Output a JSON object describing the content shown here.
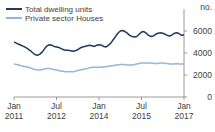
{
  "chart_data": {
    "type": "line",
    "y_label": "no.",
    "categories": [
      "Jan 2011",
      null,
      null,
      null,
      null,
      null,
      null,
      null,
      null,
      null,
      null,
      null,
      null,
      null,
      null,
      null,
      null,
      null,
      "Jul 2012",
      null,
      null,
      null,
      null,
      null,
      null,
      null,
      null,
      null,
      null,
      null,
      null,
      null,
      null,
      null,
      null,
      null,
      "Jan 2014",
      null,
      null,
      null,
      null,
      null,
      null,
      null,
      null,
      null,
      null,
      null,
      null,
      null,
      null,
      null,
      null,
      null,
      "Jul 2015",
      null,
      null,
      null,
      null,
      null,
      null,
      null,
      null,
      null,
      null,
      null,
      null,
      null,
      null,
      null,
      null,
      null,
      "Jan 2017"
    ],
    "series": [
      {
        "name": "Total dwelling units",
        "color": "#1f3a63",
        "values": [
          5000,
          4900,
          4800,
          4700,
          4600,
          4500,
          4350,
          4200,
          4000,
          3850,
          3800,
          3900,
          4100,
          4400,
          4650,
          4750,
          4700,
          4600,
          4550,
          4500,
          4400,
          4300,
          4250,
          4250,
          4200,
          4150,
          4200,
          4300,
          4450,
          4550,
          4600,
          4650,
          4700,
          4650,
          4600,
          4700,
          4750,
          4700,
          4600,
          4550,
          4700,
          4900,
          5200,
          5500,
          5800,
          6000,
          6050,
          5950,
          5800,
          5600,
          5500,
          5450,
          5500,
          5700,
          5900,
          5950,
          5800,
          5600,
          5500,
          5550,
          5700,
          5800,
          5850,
          5800,
          5700,
          5600,
          5550,
          5650,
          5800,
          5850,
          5750,
          5600,
          5650
        ]
      },
      {
        "name": "Private sector Houses",
        "color": "#93b7dc",
        "values": [
          3000,
          2950,
          2900,
          2850,
          2800,
          2750,
          2700,
          2650,
          2550,
          2500,
          2450,
          2450,
          2500,
          2550,
          2600,
          2600,
          2550,
          2500,
          2450,
          2400,
          2350,
          2350,
          2300,
          2300,
          2300,
          2300,
          2350,
          2400,
          2450,
          2500,
          2550,
          2600,
          2650,
          2700,
          2700,
          2700,
          2700,
          2700,
          2750,
          2750,
          2800,
          2850,
          2850,
          2900,
          2900,
          2950,
          2950,
          2950,
          2900,
          2900,
          2900,
          2950,
          3000,
          3050,
          3100,
          3100,
          3100,
          3100,
          3100,
          3050,
          3050,
          3050,
          3100,
          3100,
          3050,
          3050,
          3000,
          3000,
          3000,
          3050,
          3000,
          3000,
          3000
        ]
      }
    ],
    "ylim": [
      0,
      8000
    ],
    "yticks": [
      0,
      2000,
      4000,
      6000
    ],
    "legend": "top-left",
    "grid": false
  }
}
